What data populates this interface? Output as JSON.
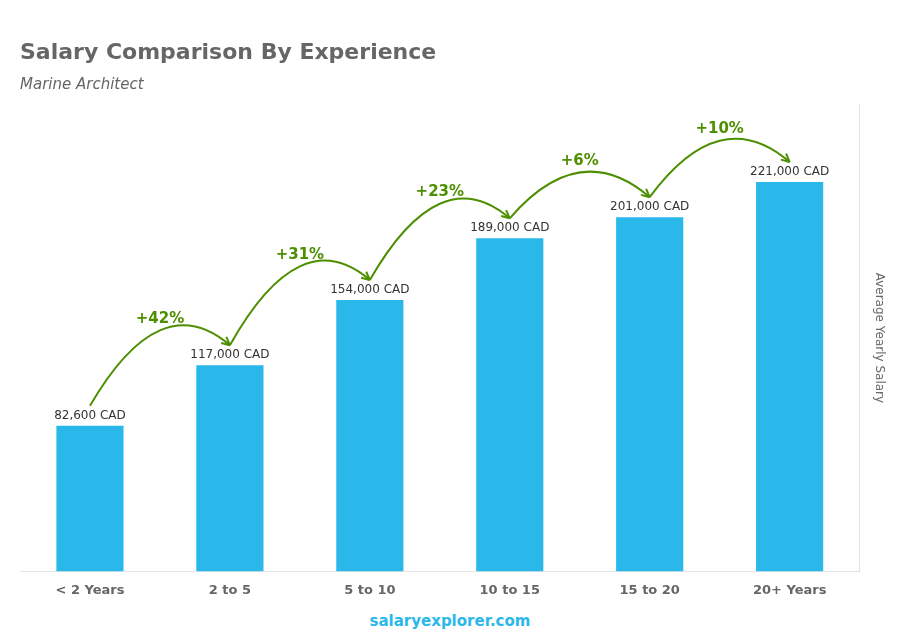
{
  "chart_data": {
    "type": "bar",
    "title": "Salary Comparison By Experience",
    "subtitle": "Marine Architect",
    "categories": [
      "< 2 Years",
      "2 to 5",
      "5 to 10",
      "10 to 15",
      "15 to 20",
      "20+ Years"
    ],
    "values": [
      82600,
      117000,
      154000,
      189000,
      201000,
      221000
    ],
    "value_labels": [
      "82,600 CAD",
      "117,000 CAD",
      "154,000 CAD",
      "189,000 CAD",
      "201,000 CAD",
      "221,000 CAD"
    ],
    "data_labels": true,
    "annotations": [
      "+42%",
      "+31%",
      "+23%",
      "+6%",
      "+10%"
    ],
    "ylabel": "Average Yearly Salary",
    "footer": "salaryexplorer.com",
    "color": "#2ab8ea",
    "ylim": [
      0,
      265000
    ],
    "grid": false,
    "tick_labels": "x"
  }
}
